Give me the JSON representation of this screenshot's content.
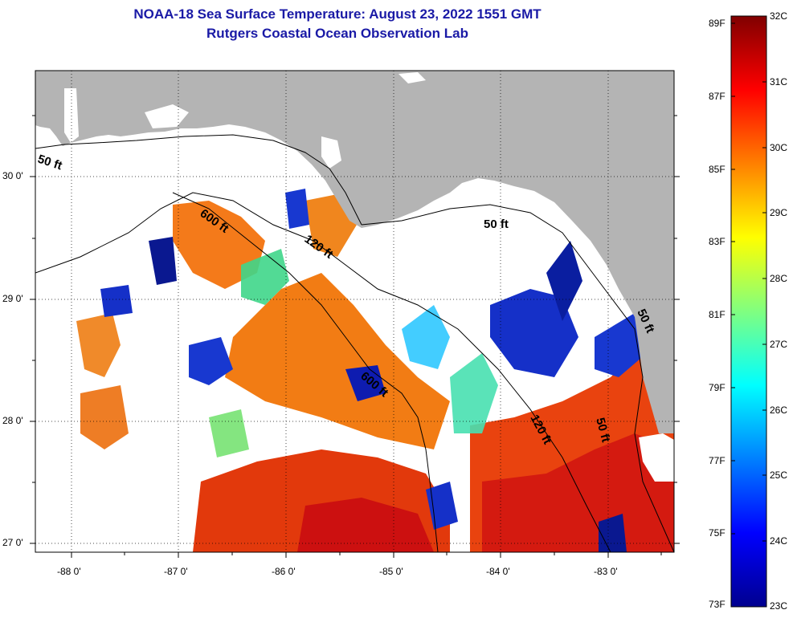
{
  "title": "NOAA-18 Sea Surface Temperature:  August 23, 2022 1551 GMT",
  "subtitle": "Rutgers Coastal Ocean Observation Lab",
  "map": {
    "lat_ticks": [
      "30 0'",
      "29 0'",
      "28 0'",
      "27 0'"
    ],
    "lon_ticks": [
      "-88 0'",
      "-87 0'",
      "-86 0'",
      "-85 0'",
      "-84 0'",
      "-83 0'"
    ],
    "contour_labels": [
      "50 ft",
      "600 ft",
      "120 ft",
      "50 ft",
      "600 ft",
      "120 ft",
      "50 ft",
      "50 ft"
    ],
    "colors": {
      "land": "#b4b4b4",
      "cloud": "#ffffff",
      "warm": "#e63a0c",
      "hot": "#d40f0f",
      "orange": "#ff8c10",
      "green": "#3fd68a",
      "cyan": "#2fc8ff",
      "blue": "#1530c8",
      "navy": "#08108a"
    }
  },
  "colorbar": {
    "fahrenheit": [
      "89F",
      "87F",
      "85F",
      "83F",
      "81F",
      "79F",
      "77F",
      "75F",
      "73F"
    ],
    "celsius": [
      "32C",
      "31C",
      "30C",
      "29C",
      "28C",
      "27C",
      "26C",
      "25C",
      "24C",
      "23C"
    ],
    "colormap": [
      "#00008f",
      "#0000ff",
      "#0080ff",
      "#00ffff",
      "#80ff80",
      "#ffff00",
      "#ff8000",
      "#ff0000",
      "#800000"
    ]
  }
}
